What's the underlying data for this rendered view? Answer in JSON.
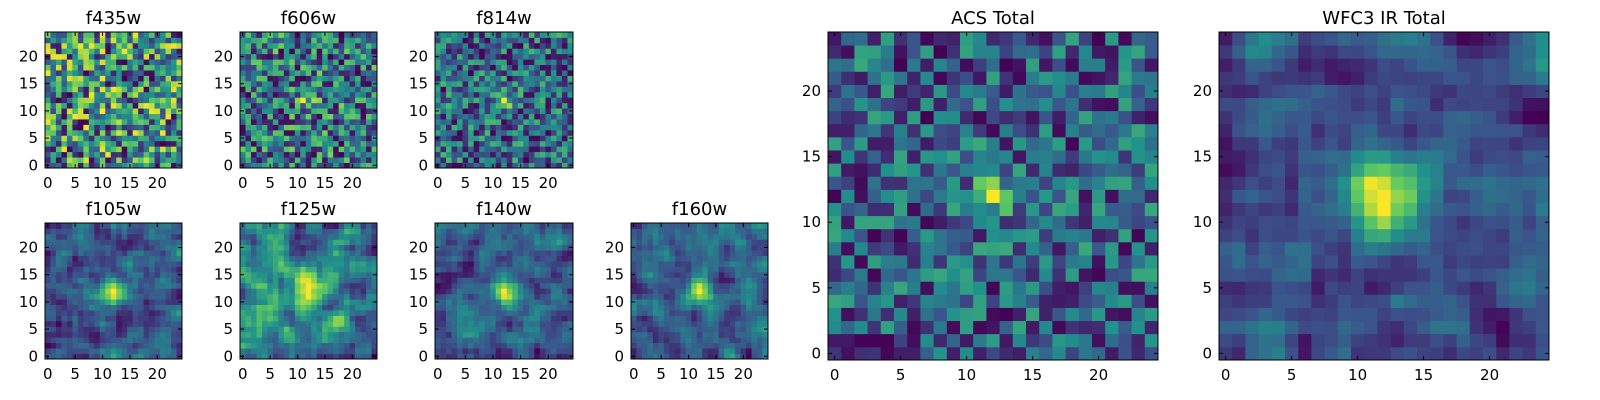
{
  "figure": {
    "colormap": "viridis",
    "colormap_stops": [
      "#440154",
      "#3b528b",
      "#21918c",
      "#5ec962",
      "#fde725"
    ],
    "axes_color": "#000000",
    "background": "#ffffff"
  },
  "chart_data": [
    {
      "type": "heatmap",
      "title": "f435w",
      "xlabel": "",
      "ylabel": "",
      "grid_size": [
        25,
        25
      ],
      "xlim": [
        0,
        24
      ],
      "ylim": [
        0,
        24
      ],
      "xticks": [
        0,
        5,
        10,
        15,
        20
      ],
      "yticks": [
        0,
        5,
        10,
        15,
        20
      ],
      "texture": "noisy",
      "peak": [
        12,
        12
      ],
      "peak_strength": 0.05,
      "sigma": 2.5,
      "seed": 11,
      "description_values": "pixel fluxes normalized to colormap range; source not detected"
    },
    {
      "type": "heatmap",
      "title": "f606w",
      "xlabel": "",
      "ylabel": "",
      "grid_size": [
        25,
        25
      ],
      "xlim": [
        0,
        24
      ],
      "ylim": [
        0,
        24
      ],
      "xticks": [
        0,
        5,
        10,
        15,
        20
      ],
      "yticks": [
        0,
        5,
        10,
        15,
        20
      ],
      "texture": "noisy",
      "peak": [
        12,
        12
      ],
      "peak_strength": 0.35,
      "sigma": 1.5,
      "seed": 23
    },
    {
      "type": "heatmap",
      "title": "f814w",
      "xlabel": "",
      "ylabel": "",
      "grid_size": [
        25,
        25
      ],
      "xlim": [
        0,
        24
      ],
      "ylim": [
        0,
        24
      ],
      "xticks": [
        0,
        5,
        10,
        15,
        20
      ],
      "yticks": [
        0,
        5,
        10,
        15,
        20
      ],
      "texture": "noisy",
      "peak": [
        12,
        12
      ],
      "peak_strength": 0.45,
      "sigma": 1.4,
      "seed": 37
    },
    {
      "type": "heatmap",
      "title": "f105w",
      "xlabel": "",
      "ylabel": "",
      "grid_size": [
        25,
        25
      ],
      "xlim": [
        0,
        24
      ],
      "ylim": [
        0,
        24
      ],
      "xticks": [
        0,
        5,
        10,
        15,
        20
      ],
      "yticks": [
        0,
        5,
        10,
        15,
        20
      ],
      "texture": "smooth",
      "peak": [
        12,
        12
      ],
      "peak_strength": 0.75,
      "sigma": 2.0,
      "seed": 41
    },
    {
      "type": "heatmap",
      "title": "f125w",
      "xlabel": "",
      "ylabel": "",
      "grid_size": [
        25,
        25
      ],
      "xlim": [
        0,
        24
      ],
      "ylim": [
        0,
        24
      ],
      "xticks": [
        0,
        5,
        10,
        15,
        20
      ],
      "yticks": [
        0,
        5,
        10,
        15,
        20
      ],
      "texture": "smooth",
      "peak": [
        12,
        12
      ],
      "peak_strength": 0.55,
      "sigma": 2.0,
      "seed": 53
    },
    {
      "type": "heatmap",
      "title": "f140w",
      "xlabel": "",
      "ylabel": "",
      "grid_size": [
        25,
        25
      ],
      "xlim": [
        0,
        24
      ],
      "ylim": [
        0,
        24
      ],
      "xticks": [
        0,
        5,
        10,
        15,
        20
      ],
      "yticks": [
        0,
        5,
        10,
        15,
        20
      ],
      "texture": "smooth",
      "peak": [
        12,
        12
      ],
      "peak_strength": 0.7,
      "sigma": 1.8,
      "seed": 67
    },
    {
      "type": "heatmap",
      "title": "f160w",
      "xlabel": "",
      "ylabel": "",
      "grid_size": [
        25,
        25
      ],
      "xlim": [
        0,
        24
      ],
      "ylim": [
        0,
        24
      ],
      "xticks": [
        0,
        5,
        10,
        15,
        20
      ],
      "yticks": [
        0,
        5,
        10,
        15,
        20
      ],
      "texture": "smooth",
      "peak": [
        12,
        12
      ],
      "peak_strength": 0.8,
      "sigma": 1.6,
      "seed": 79
    },
    {
      "type": "heatmap",
      "title": "ACS Total",
      "xlabel": "",
      "ylabel": "",
      "grid_size": [
        25,
        25
      ],
      "xlim": [
        0,
        24
      ],
      "ylim": [
        0,
        24
      ],
      "xticks": [
        0,
        5,
        10,
        15,
        20
      ],
      "yticks": [
        0,
        5,
        10,
        15,
        20
      ],
      "texture": "noisy",
      "peak": [
        12,
        12
      ],
      "peak_strength": 0.6,
      "sigma": 1.3,
      "seed": 97
    },
    {
      "type": "heatmap",
      "title": "WFC3 IR Total",
      "xlabel": "",
      "ylabel": "",
      "grid_size": [
        25,
        25
      ],
      "xlim": [
        0,
        24
      ],
      "ylim": [
        0,
        24
      ],
      "xticks": [
        0,
        5,
        10,
        15,
        20
      ],
      "yticks": [
        0,
        5,
        10,
        15,
        20
      ],
      "texture": "smooth",
      "peak": [
        12,
        12
      ],
      "peak_strength": 0.95,
      "sigma": 2.0,
      "seed": 113
    }
  ]
}
